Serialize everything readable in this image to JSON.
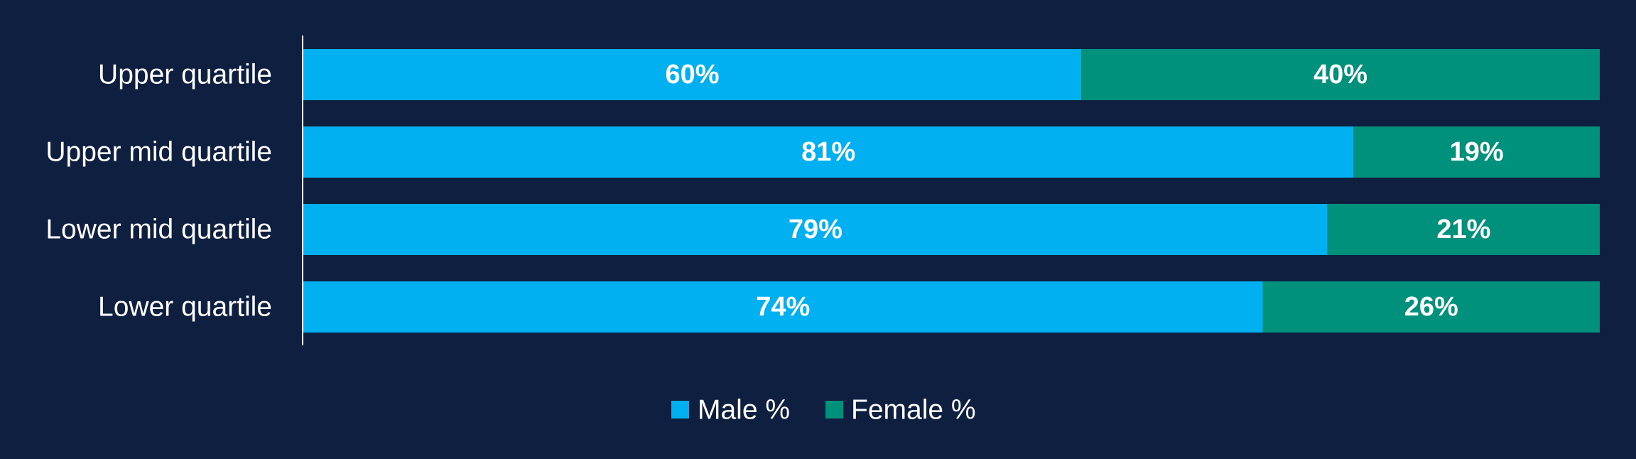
{
  "chart_data": {
    "type": "bar",
    "orientation": "horizontal",
    "stacked": true,
    "categories": [
      "Upper quartile",
      "Upper mid quartile",
      "Lower mid quartile",
      "Lower quartile"
    ],
    "series": [
      {
        "name": "Male %",
        "values": [
          60,
          81,
          79,
          74
        ],
        "labels": [
          "60%",
          "81%",
          "79%",
          "74%"
        ],
        "color": "#00b0f0"
      },
      {
        "name": "Female %",
        "values": [
          40,
          19,
          21,
          26
        ],
        "labels": [
          "40%",
          "19%",
          "21%",
          "26%"
        ],
        "color": "#00917c"
      }
    ],
    "xlim": [
      0,
      100
    ],
    "grid": false,
    "legend_position": "bottom-center",
    "colors": {
      "background": "#0e1f40",
      "axis": "#ffffff",
      "text": "#ffffff"
    }
  }
}
